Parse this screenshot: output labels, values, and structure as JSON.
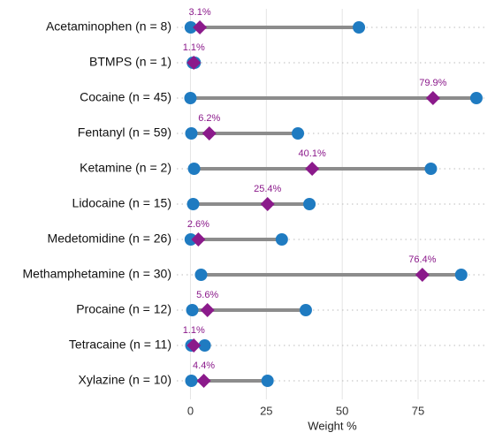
{
  "chart_data": {
    "type": "dumbbell",
    "x_label": "Weight %",
    "categories": [
      "Acetaminophen (n = 8)",
      "BTMPS (n = 1)",
      "Cocaine (n = 45)",
      "Fentanyl (n = 59)",
      "Ketamine (n = 2)",
      "Lidocaine (n = 15)",
      "Medetomidine (n = 26)",
      "Methamphetamine (n = 30)",
      "Procaine (n = 12)",
      "Tetracaine (n = 11)",
      "Xylazine (n = 10)"
    ],
    "min": [
      0.1,
      0.8,
      0,
      0.3,
      1.2,
      0.9,
      0.1,
      3.5,
      0.6,
      0.3,
      0.3
    ],
    "max": [
      55.5,
      1.4,
      94.2,
      35.4,
      79.2,
      39.2,
      30.1,
      89.2,
      38.0,
      4.7,
      25.4
    ],
    "values": [
      3.1,
      1.1,
      79.9,
      6.2,
      40.1,
      25.4,
      2.6,
      76.4,
      5.6,
      1.1,
      4.4
    ],
    "value_labels": [
      "3.1%",
      "1.1%",
      "79.9%",
      "6.2%",
      "40.1%",
      "25.4%",
      "2.6%",
      "76.4%",
      "5.6%",
      "1.1%",
      "4.4%"
    ],
    "range_color": "#1f7bc1",
    "median_color": "#8b1a8b",
    "segment_color": "#8c8c8c",
    "xlim": [
      -4.5,
      98
    ],
    "xticks": [
      0,
      25,
      50,
      75
    ],
    "grid": true
  }
}
